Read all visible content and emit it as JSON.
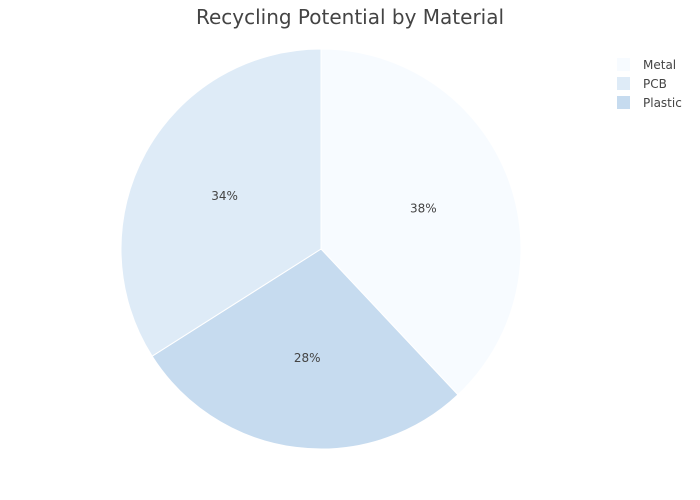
{
  "chart_data": {
    "type": "pie",
    "title": "Recycling Potential by Material",
    "slices": [
      {
        "label": "Metal",
        "value": 38,
        "text": "38%",
        "color": "#f7fbff"
      },
      {
        "label": "Plastic",
        "value": 28,
        "text": "28%",
        "color": "#c6dbef"
      },
      {
        "label": "PCB",
        "value": 34,
        "text": "34%",
        "color": "#deebf7"
      }
    ],
    "legend": {
      "placement": "top-right",
      "items": [
        {
          "label": "Metal",
          "color": "#f7fbff"
        },
        {
          "label": "PCB",
          "color": "#deebf7"
        },
        {
          "label": "Plastic",
          "color": "#c6dbef"
        }
      ]
    },
    "start_angle_deg": 0,
    "direction": "clockwise"
  }
}
